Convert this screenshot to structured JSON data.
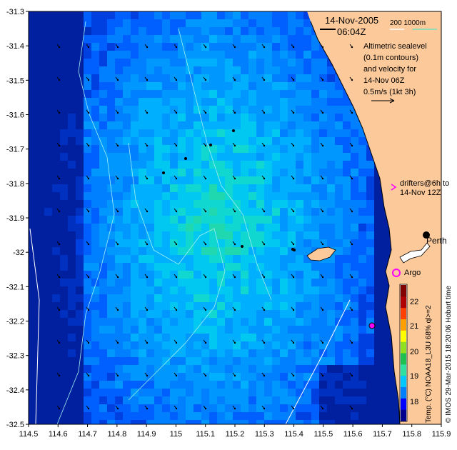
{
  "header": {
    "date": "14-Nov-2005",
    "time": "06:04Z",
    "bathy_label": "200   1000m"
  },
  "legend": {
    "altimetry_lines": [
      "Altimetric sealevel",
      "(0.1m contours)",
      "and velocity for",
      "14-Nov 06Z",
      "0.5m/s (1kt 3h)"
    ],
    "drifters_lines": [
      "drifters@6h to",
      "14-Nov 12Z"
    ],
    "argo": "Argo",
    "city": "Perth"
  },
  "colorbar": {
    "ticks": [
      "22",
      "21",
      "20",
      "19",
      "18"
    ],
    "label": "Temp. (°C) NOAA18_L3U 68% ql>=2",
    "credit": "© IMOS 29-Mar-2015 18:20:06 Hobart time",
    "range": [
      17.5,
      22.8
    ],
    "colors": [
      "#00008f",
      "#0000ff",
      "#0080ff",
      "#00c8ff",
      "#30e0a0",
      "#20c050",
      "#90e020",
      "#ffff00",
      "#ffa000",
      "#ff4000",
      "#b00000",
      "#800000"
    ]
  },
  "axes": {
    "x_ticks": [
      "114.5",
      "114.6",
      "114.7",
      "114.8",
      "114.9",
      "115",
      "115.1",
      "115.2",
      "115.3",
      "115.4",
      "115.5",
      "115.6",
      "115.7",
      "115.8",
      "115.9"
    ],
    "y_ticks": [
      "-31.3",
      "-31.4",
      "-31.5",
      "-31.6",
      "-31.7",
      "-31.8",
      "-31.9",
      "-32",
      "-32.1",
      "-32.2",
      "-32.3",
      "-32.4",
      "-32.5"
    ],
    "lon_range": [
      114.5,
      115.9
    ],
    "lat_range": [
      -32.5,
      -31.3
    ]
  },
  "colors": {
    "land": "#fcc99a",
    "drifter": "#ff00ff",
    "bathy": "#70e0c0"
  }
}
